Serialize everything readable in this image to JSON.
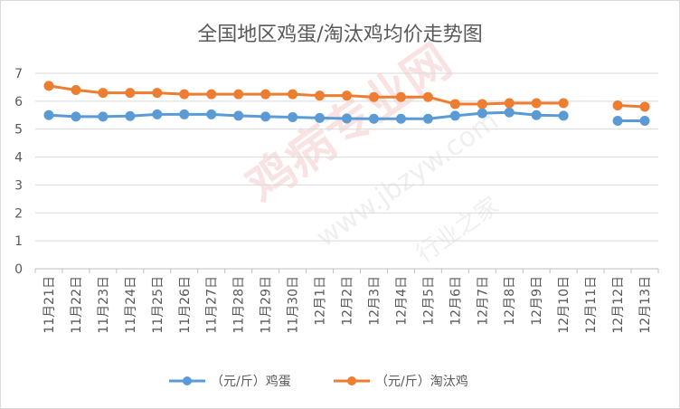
{
  "chart_data": {
    "type": "line",
    "title": "全国地区鸡蛋/淘汰鸡均价走势图",
    "xlabel": "",
    "ylabel": "",
    "categories": [
      "11月21日",
      "11月22日",
      "11月23日",
      "11月24日",
      "11月25日",
      "11月26日",
      "11月27日",
      "11月28日",
      "11月29日",
      "11月30日",
      "12月1日",
      "12月2日",
      "12月3日",
      "12月4日",
      "12月5日",
      "12月6日",
      "12月7日",
      "12月8日",
      "12月9日",
      "12月10日",
      "12月11日",
      "12月12日",
      "12月13日"
    ],
    "ylim": [
      0,
      7
    ],
    "yticks": [
      0,
      1,
      2,
      3,
      4,
      5,
      6,
      7
    ],
    "grid": true,
    "legend_position": "bottom",
    "series": [
      {
        "name": "（元/斤）鸡蛋",
        "color": "#5b9bd5",
        "values": [
          5.5,
          5.45,
          5.45,
          5.47,
          5.53,
          5.53,
          5.53,
          5.48,
          5.45,
          5.43,
          5.4,
          5.38,
          5.37,
          5.37,
          5.37,
          5.48,
          5.57,
          5.6,
          5.5,
          5.48,
          null,
          5.3,
          5.3
        ]
      },
      {
        "name": "（元/斤）淘汰鸡",
        "color": "#ed7d31",
        "values": [
          6.55,
          6.4,
          6.3,
          6.3,
          6.3,
          6.25,
          6.25,
          6.25,
          6.25,
          6.25,
          6.2,
          6.2,
          6.15,
          6.15,
          6.15,
          5.9,
          5.9,
          5.93,
          5.93,
          5.93,
          null,
          5.85,
          5.8
        ]
      }
    ]
  },
  "watermark": {
    "brand": "鸡病专业网",
    "url": "www.jbzyw.com",
    "slogan": "行业之家"
  }
}
